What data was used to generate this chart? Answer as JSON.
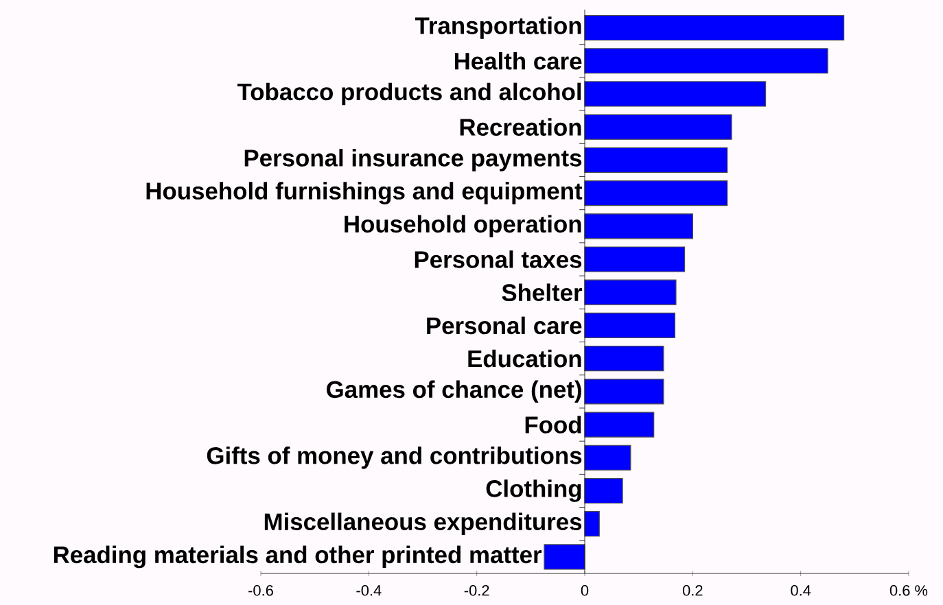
{
  "chart_data": {
    "type": "bar",
    "orientation": "horizontal",
    "categories": [
      "Transportation",
      "Health care",
      "Tobacco products and alcohol",
      "Recreation",
      "Personal insurance payments",
      "Household furnishings and equipment",
      "Household operation",
      "Personal taxes",
      "Shelter",
      "Personal care",
      "Education",
      "Games of chance (net)",
      "Food",
      "Gifts of money and contributions",
      "Clothing",
      "Miscellaneous expenditures",
      "Reading materials and other printed matter"
    ],
    "values": [
      0.48,
      0.45,
      0.335,
      0.272,
      0.264,
      0.264,
      0.2,
      0.185,
      0.169,
      0.167,
      0.146,
      0.146,
      0.128,
      0.085,
      0.07,
      0.027,
      -0.075
    ],
    "color": "#0000ff",
    "xlim": [
      -0.6,
      0.6
    ],
    "xticks": [
      -0.6,
      -0.4,
      -0.2,
      0,
      0.2,
      0.4,
      {
        "value": 0.6,
        "label": "0.6 %"
      }
    ]
  }
}
